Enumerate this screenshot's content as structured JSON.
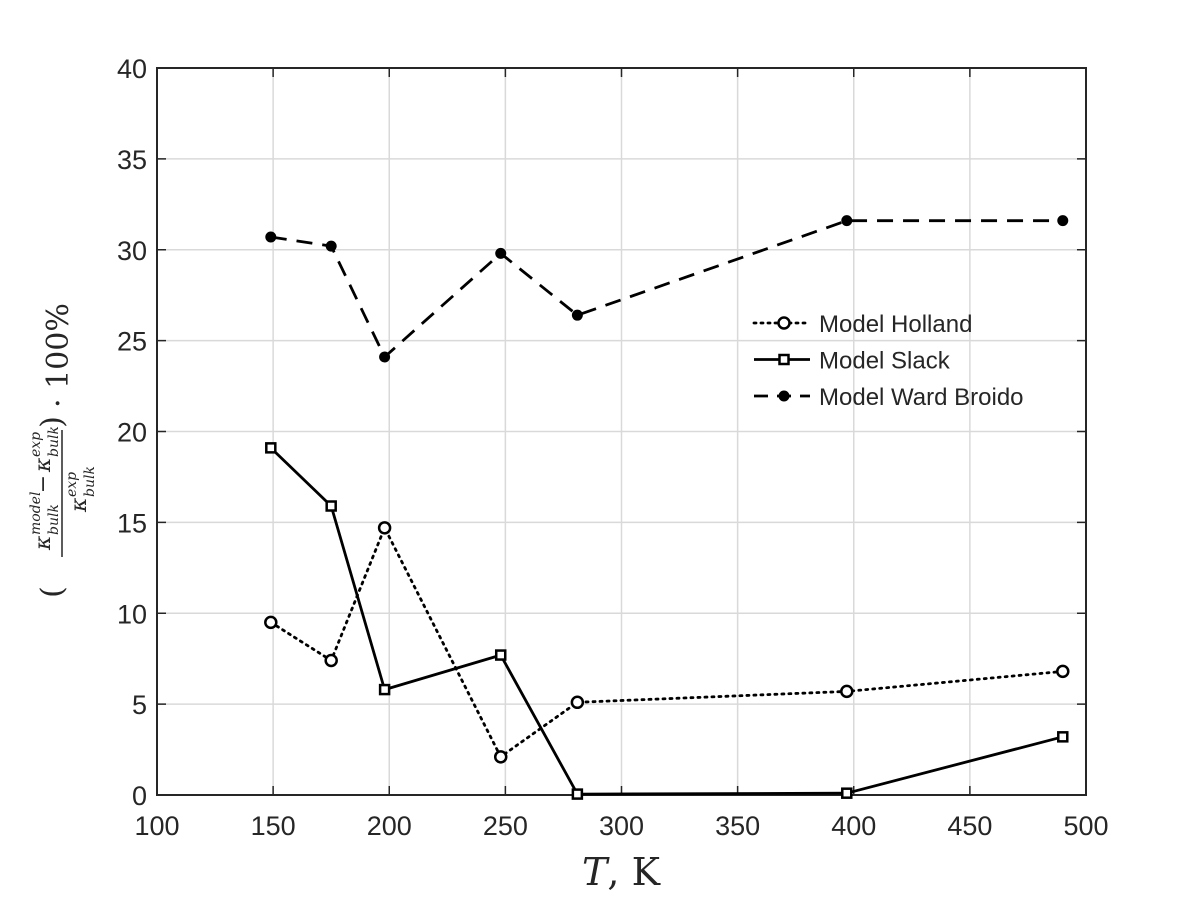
{
  "chart_data": {
    "type": "line",
    "xlabel": "T, K",
    "ylabel": "(κ_bulk^model − κ_bulk^exp) / κ_bulk^exp · 100%",
    "xlim": [
      100,
      500
    ],
    "ylim": [
      0,
      40
    ],
    "xticks": [
      100,
      150,
      200,
      250,
      300,
      350,
      400,
      450,
      500
    ],
    "yticks": [
      0,
      5,
      10,
      15,
      20,
      25,
      30,
      35,
      40
    ],
    "grid": true,
    "legend_position": "right-middle",
    "colors": {
      "series": "#000000",
      "grid": "#d9d9d9",
      "axes": "#262626"
    },
    "series": [
      {
        "name": "Model Holland",
        "line_style": "dotted",
        "marker": "open-circle",
        "x": [
          149,
          175,
          198,
          248,
          281,
          397,
          490
        ],
        "y": [
          9.5,
          7.4,
          14.7,
          2.1,
          5.1,
          5.7,
          6.8
        ]
      },
      {
        "name": "Model Slack",
        "line_style": "solid",
        "marker": "open-square",
        "x": [
          149,
          175,
          198,
          248,
          281,
          397,
          490
        ],
        "y": [
          19.1,
          15.9,
          5.8,
          7.7,
          0.05,
          0.1,
          3.2
        ]
      },
      {
        "name": "Model Ward Broido",
        "line_style": "dashed",
        "marker": "filled-circle",
        "x": [
          149,
          175,
          198,
          248,
          281,
          397,
          490
        ],
        "y": [
          30.7,
          30.2,
          24.1,
          29.8,
          26.4,
          31.6,
          31.6
        ]
      }
    ]
  },
  "ylabel_parts": {
    "kappa": "κ",
    "sub": "bulk",
    "sup_model": "model",
    "sup_exp": "exp",
    "minus": "−",
    "lparen": "(",
    "rparen": ")",
    "tail": "· 100%"
  },
  "xlabel_parts": {
    "var": "T",
    "unit": ", K"
  }
}
